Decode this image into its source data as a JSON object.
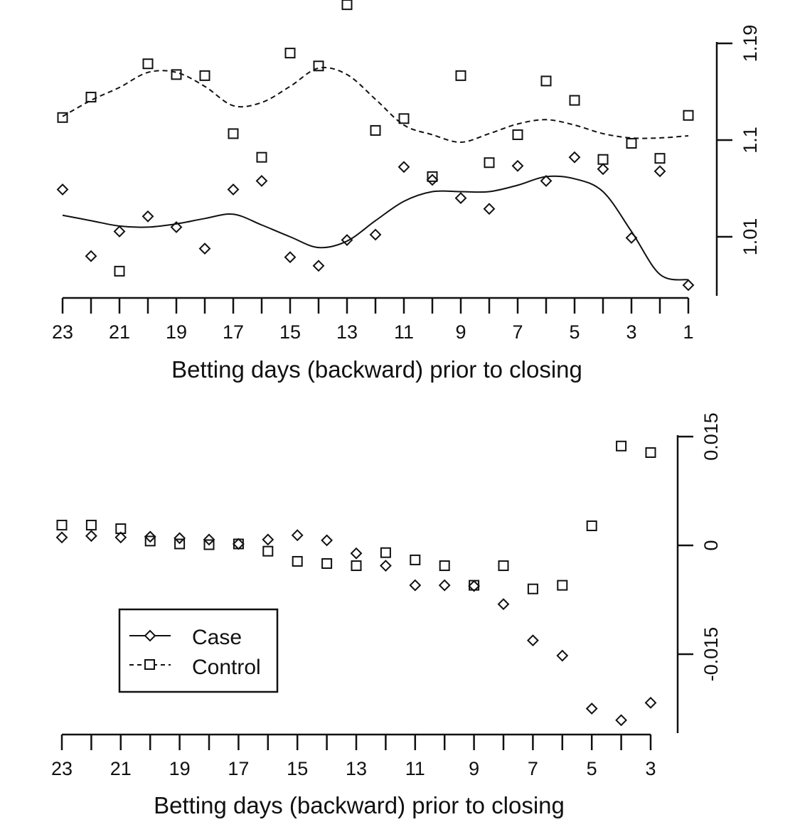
{
  "chart_data": [
    {
      "type": "scatter",
      "panel": "top",
      "title": "",
      "xlabel": "Betting days (backward) prior to closing",
      "ylabel": "",
      "x_ticks": [
        23,
        22,
        21,
        20,
        19,
        18,
        17,
        16,
        15,
        14,
        13,
        12,
        11,
        10,
        9,
        8,
        7,
        6,
        5,
        4,
        3,
        2,
        1
      ],
      "x_tick_labels": [
        "23",
        "21",
        "19",
        "17",
        "15",
        "13",
        "11",
        "9",
        "7",
        "5",
        "3",
        "1"
      ],
      "xlim": [
        23,
        1
      ],
      "y_ticks": [
        1.01,
        1.1,
        1.19
      ],
      "y_tick_labels": [
        "1.01",
        "1.1",
        "1.19"
      ],
      "ylim": [
        0.955,
        1.19
      ],
      "y_axis_side": "right",
      "series": [
        {
          "name": "Case",
          "marker": "diamond",
          "x": [
            23,
            22,
            21,
            20,
            19,
            18,
            17,
            16,
            15,
            14,
            13,
            12,
            11,
            10,
            9,
            8,
            7,
            6,
            5,
            4,
            3,
            2,
            1
          ],
          "y": [
            1.054,
            0.992,
            1.015,
            1.029,
            1.019,
            0.999,
            1.054,
            1.062,
            0.991,
            0.983,
            1.007,
            1.012,
            1.075,
            1.063,
            1.046,
            1.036,
            1.076,
            1.062,
            1.084,
            1.073,
            1.009,
            1.071,
            0.965
          ],
          "smooth_y": [
            1.03,
            1.025,
            1.02,
            1.019,
            1.022,
            1.027,
            1.031,
            1.021,
            1.01,
            1.0,
            1.006,
            1.025,
            1.043,
            1.052,
            1.052,
            1.052,
            1.058,
            1.066,
            1.064,
            1.052,
            1.015,
            0.975,
            0.97
          ],
          "smooth_style": "solid"
        },
        {
          "name": "Control",
          "marker": "square",
          "x": [
            23,
            22,
            21,
            20,
            19,
            18,
            17,
            16,
            15,
            14,
            13,
            12,
            11,
            10,
            9,
            8,
            7,
            6,
            5,
            4,
            3,
            2,
            1
          ],
          "y": [
            1.121,
            1.14,
            0.978,
            1.171,
            1.161,
            1.16,
            1.106,
            1.084,
            1.181,
            1.169,
            1.226,
            1.109,
            1.12,
            1.066,
            1.16,
            1.079,
            1.105,
            1.155,
            1.137,
            1.082,
            1.097,
            1.083,
            1.123
          ],
          "smooth_y": [
            1.122,
            1.137,
            1.149,
            1.163,
            1.163,
            1.15,
            1.132,
            1.135,
            1.15,
            1.167,
            1.161,
            1.138,
            1.114,
            1.105,
            1.098,
            1.106,
            1.115,
            1.119,
            1.114,
            1.106,
            1.102,
            1.102,
            1.104
          ],
          "smooth_style": "dashed"
        }
      ]
    },
    {
      "type": "scatter",
      "panel": "bottom",
      "title": "",
      "xlabel": "Betting days (backward) prior to closing",
      "ylabel": "",
      "x_ticks": [
        23,
        22,
        21,
        20,
        19,
        18,
        17,
        16,
        15,
        14,
        13,
        12,
        11,
        10,
        9,
        8,
        7,
        6,
        5,
        4,
        3
      ],
      "x_tick_labels": [
        "23",
        "21",
        "19",
        "17",
        "15",
        "13",
        "11",
        "9",
        "7",
        "5",
        "3"
      ],
      "xlim": [
        23,
        3
      ],
      "y_ticks": [
        -0.015,
        0,
        0.015
      ],
      "y_tick_labels": [
        "-0.015",
        "0",
        "0.015"
      ],
      "ylim": [
        -0.026,
        0.015
      ],
      "y_axis_side": "right",
      "legend": {
        "position": "lower-left",
        "entries": [
          {
            "label": "Case",
            "marker": "diamond",
            "line": "solid"
          },
          {
            "label": "Control",
            "marker": "square",
            "line": "dashed"
          }
        ]
      },
      "series": [
        {
          "name": "Case",
          "marker": "diamond",
          "x": [
            23,
            22,
            21,
            20,
            19,
            18,
            17,
            16,
            15,
            14,
            13,
            12,
            11,
            10,
            9,
            8,
            7,
            6,
            5,
            4,
            3
          ],
          "y": [
            0.0011,
            0.0013,
            0.0011,
            0.0012,
            0.001,
            0.0008,
            0.0002,
            0.0008,
            0.0014,
            0.0007,
            -0.0011,
            -0.0028,
            -0.0055,
            -0.0055,
            -0.0056,
            -0.0081,
            -0.0131,
            -0.0152,
            -0.0225,
            -0.0241,
            -0.0217
          ]
        },
        {
          "name": "Control",
          "marker": "square",
          "x": [
            23,
            22,
            21,
            20,
            19,
            18,
            17,
            16,
            15,
            14,
            13,
            12,
            11,
            10,
            9,
            8,
            7,
            6,
            5,
            4,
            3
          ],
          "y": [
            0.0028,
            0.0028,
            0.0023,
            0.0006,
            0.0002,
            0.0001,
            0.0002,
            -0.0008,
            -0.0022,
            -0.0025,
            -0.0028,
            -0.001,
            -0.002,
            -0.0028,
            -0.0055,
            -0.0028,
            -0.006,
            -0.0055,
            0.0027,
            0.0137,
            0.0128
          ]
        }
      ]
    }
  ]
}
